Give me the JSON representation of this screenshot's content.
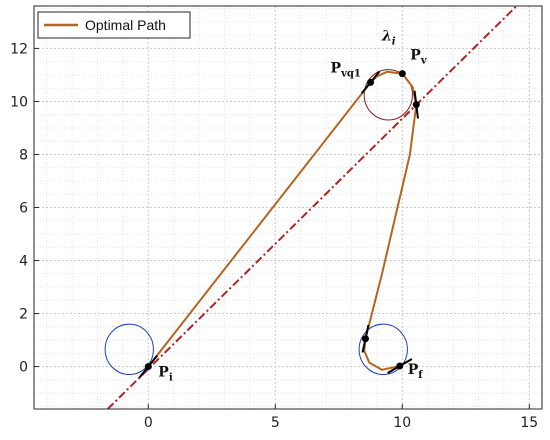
{
  "chart_data": {
    "type": "line",
    "title": "",
    "xlabel": "",
    "ylabel": "",
    "xlim": [
      -4.5,
      15.5
    ],
    "ylim": [
      -1.6,
      13.6
    ],
    "xticks": [
      0,
      5,
      10,
      15
    ],
    "yticks": [
      0,
      2,
      4,
      6,
      8,
      10,
      12
    ],
    "xtick_labels": [
      "0",
      "5",
      "10",
      "15"
    ],
    "ytick_labels": [
      "0",
      "2",
      "4",
      "6",
      "8",
      "10",
      "12"
    ],
    "grid": true,
    "minor_grid": true,
    "legend": {
      "position": "top-left",
      "entries": [
        "Optimal Path"
      ]
    },
    "series": [
      {
        "name": "Optimal Path",
        "color": "#b5651d",
        "points": [
          [
            0,
            0
          ],
          [
            8.75,
            10.72
          ],
          [
            9.0,
            10.95
          ],
          [
            9.4,
            11.12
          ],
          [
            10.0,
            11.05
          ],
          [
            10.4,
            10.55
          ],
          [
            10.55,
            9.88
          ],
          [
            10.3,
            8.0
          ],
          [
            9.2,
            3.5
          ],
          [
            8.55,
            1.05
          ],
          [
            8.5,
            0.6
          ],
          [
            8.7,
            0.15
          ],
          [
            9.2,
            -0.12
          ],
          [
            9.9,
            0.02
          ]
        ]
      },
      {
        "label": "λi",
        "color": "#b22222",
        "style": "dashdot",
        "line": {
          "x0": -1.6,
          "y0": -1.6,
          "x1": 14.5,
          "y1": 13.6
        }
      }
    ],
    "circles": [
      {
        "cx": -0.75,
        "cy": 0.65,
        "r": 0.95,
        "color": "#1f3fbf"
      },
      {
        "cx": 9.45,
        "cy": 10.25,
        "r": 0.95,
        "color": "#8b1a1a"
      },
      {
        "cx": 9.25,
        "cy": 0.65,
        "r": 0.95,
        "color": "#1f3fbf"
      }
    ],
    "points": [
      {
        "x": 0,
        "y": 0,
        "label": "P",
        "sub": "i"
      },
      {
        "x": 8.75,
        "y": 10.72,
        "label": "P",
        "sub": "vq1"
      },
      {
        "x": 10.0,
        "y": 11.05,
        "label": "P",
        "sub": "v"
      },
      {
        "x": 10.55,
        "y": 9.88,
        "label": "",
        "sub": ""
      },
      {
        "x": 8.55,
        "y": 1.05,
        "label": "",
        "sub": ""
      },
      {
        "x": 9.9,
        "y": 0.02,
        "label": "P",
        "sub": "f"
      }
    ],
    "tangents": [
      {
        "x": 0,
        "y": 0,
        "angle_deg": 51
      },
      {
        "x": 8.75,
        "y": 10.72,
        "angle_deg": 51
      },
      {
        "x": 10.55,
        "y": 9.88,
        "angle_deg": 97
      },
      {
        "x": 8.55,
        "y": 1.05,
        "angle_deg": 78
      },
      {
        "x": 9.9,
        "y": 0.02,
        "angle_deg": 30
      }
    ],
    "line_label": {
      "text": "λ",
      "sub": "i"
    }
  }
}
